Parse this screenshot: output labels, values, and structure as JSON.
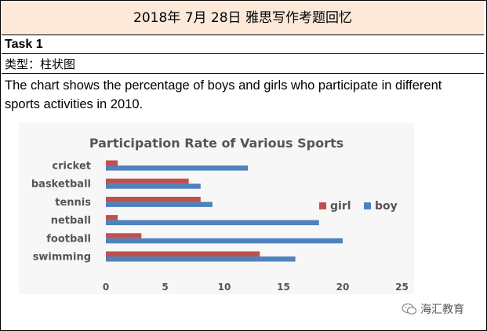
{
  "banner": {
    "title": "2018年 7月 28日 雅思写作考题回忆"
  },
  "task": {
    "label": "Task 1"
  },
  "type": {
    "label": "类型：柱状图"
  },
  "prompt": {
    "text": "The  chart shows the percentage of boys and girls who participate in different sports activities in 2010."
  },
  "watermark": {
    "text": "海汇教育",
    "icon": "wechat-icon"
  },
  "colors": {
    "girl": "#c0504d",
    "boy": "#4f81bd",
    "banner_bg": "#fde9d9"
  },
  "chart_data": {
    "type": "bar",
    "orientation": "horizontal",
    "title": "Participation Rate of Various Sports",
    "categories": [
      "cricket",
      "basketball",
      "tennis",
      "netball",
      "football",
      "swimming"
    ],
    "series": [
      {
        "name": "girl",
        "color": "#c0504d",
        "values": [
          1,
          7,
          8,
          1,
          3,
          13
        ]
      },
      {
        "name": "boy",
        "color": "#4f81bd",
        "values": [
          12,
          8,
          9,
          18,
          20,
          16
        ]
      }
    ],
    "xlim": [
      0,
      25
    ],
    "xticks": [
      "0",
      "5",
      "10",
      "15",
      "20",
      "25"
    ],
    "grid": false,
    "legend": "right"
  }
}
